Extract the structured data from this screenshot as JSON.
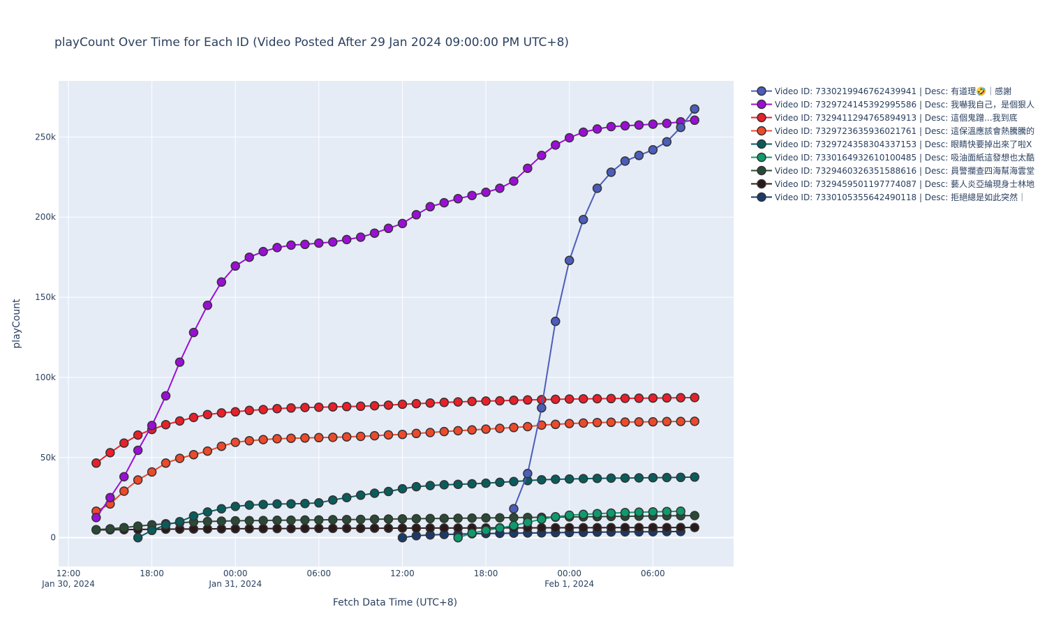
{
  "chart_data": {
    "type": "line",
    "title": "playCount Over Time for Each ID (Video Posted After 29 Jan 2024 09:00:00 PM UTC+8)",
    "xlabel": "Fetch Data Time (UTC+8)",
    "ylabel": "playCount",
    "x_ticks": [
      {
        "label": "12:00",
        "sub": "Jan 30, 2024",
        "hour": 0
      },
      {
        "label": "18:00",
        "sub": "",
        "hour": 6
      },
      {
        "label": "00:00",
        "sub": "Jan 31, 2024",
        "hour": 12
      },
      {
        "label": "06:00",
        "sub": "",
        "hour": 18
      },
      {
        "label": "12:00",
        "sub": "",
        "hour": 24
      },
      {
        "label": "18:00",
        "sub": "",
        "hour": 30
      },
      {
        "label": "00:00",
        "sub": "Feb 1, 2024",
        "hour": 36
      },
      {
        "label": "06:00",
        "sub": "",
        "hour": 42
      }
    ],
    "x_unit": "hours since 2024-01-30 12:00 UTC+8",
    "xlim": [
      -0.7,
      47.8
    ],
    "ylim": [
      -18000,
      285000
    ],
    "y_ticks": [
      {
        "value": 0,
        "label": "0"
      },
      {
        "value": 50000,
        "label": "50k"
      },
      {
        "value": 100000,
        "label": "100k"
      },
      {
        "value": 150000,
        "label": "150k"
      },
      {
        "value": 200000,
        "label": "200k"
      },
      {
        "value": 250000,
        "label": "250k"
      }
    ],
    "grid": true,
    "legend_position": "right",
    "series": [
      {
        "name": "Video ID: 7330219946762439941 | Desc: 有道理🤣｜感謝",
        "color": "#4c5dba",
        "start_hour": 32,
        "values": [
          18000,
          40000,
          81000,
          135000,
          173000,
          198500,
          218000,
          228000,
          235000,
          238500,
          242000,
          247000,
          256000,
          267500
        ]
      },
      {
        "name": "Video ID: 7329724145392995586 | Desc: 我嚇我自己，是個狠人",
        "color": "#9b0ed6",
        "start_hour": 2,
        "values": [
          12500,
          25000,
          38000,
          54500,
          70000,
          88500,
          109500,
          128000,
          145000,
          159500,
          169500,
          175000,
          178500,
          181000,
          182500,
          183000,
          183800,
          184500,
          186000,
          187500,
          190000,
          193000,
          196000,
          201500,
          206500,
          209000,
          211500,
          213500,
          215500,
          218000,
          222500,
          230500,
          238500,
          245000,
          249500,
          253000,
          255000,
          256500,
          257000,
          257500,
          258000,
          258500,
          259500,
          260500
        ]
      },
      {
        "name": "Video ID: 7329411294765894913 | Desc: 這個鬼蹭...我到底",
        "color": "#e8202a",
        "start_hour": 2,
        "values": [
          46500,
          53000,
          59000,
          64000,
          67500,
          70500,
          72800,
          75000,
          76800,
          77800,
          78500,
          79400,
          79900,
          80500,
          80900,
          81200,
          81400,
          81600,
          81800,
          82000,
          82300,
          82700,
          83200,
          83600,
          84000,
          84400,
          84700,
          85000,
          85200,
          85400,
          85700,
          85900,
          86100,
          86300,
          86500,
          86600,
          86700,
          86800,
          86900,
          87000,
          87100,
          87200,
          87300,
          87400
        ]
      },
      {
        "name": "Video ID: 7329723635936021761 | Desc: 這保溫應該會熱騰騰的",
        "color": "#ec4a2b",
        "start_hour": 2,
        "values": [
          16500,
          21000,
          29000,
          36000,
          41000,
          46500,
          49500,
          51800,
          54000,
          57000,
          59500,
          60500,
          61200,
          61700,
          62000,
          62200,
          62400,
          62600,
          62900,
          63200,
          63600,
          64100,
          64400,
          65000,
          65600,
          66200,
          66700,
          67200,
          67700,
          68200,
          68700,
          69300,
          70200,
          70700,
          71200,
          71500,
          71800,
          72000,
          72100,
          72200,
          72300,
          72400,
          72500,
          72600
        ]
      },
      {
        "name": "Video ID: 7329724358304337153 | Desc: 眼睛快要掉出來了啦X",
        "color": "#0a5c5c",
        "start_hour": 5,
        "values": [
          0,
          4500,
          8000,
          10000,
          13500,
          16000,
          18000,
          19500,
          20300,
          20700,
          21000,
          21100,
          21300,
          21700,
          23500,
          25000,
          26500,
          27700,
          28800,
          30500,
          31800,
          32500,
          33000,
          33300,
          33600,
          34000,
          34500,
          35000,
          35600,
          36100,
          36400,
          36600,
          36800,
          37000,
          37100,
          37200,
          37300,
          37400,
          37500,
          37600,
          37800
        ]
      },
      {
        "name": "Video ID: 7330164932610100485 | Desc: 吸油面紙這發想也太酷",
        "color": "#0f9a6e",
        "start_hour": 28,
        "values": [
          0,
          2800,
          4500,
          6000,
          7500,
          9500,
          11500,
          13000,
          14000,
          14500,
          15000,
          15300,
          15600,
          15900,
          16100,
          16300,
          16500
        ]
      },
      {
        "name": "Video ID: 7329460326351588616 | Desc: 員警攔查四海幫海雲堂",
        "color": "#2a4a35",
        "start_hour": 2,
        "values": [
          5000,
          5500,
          6300,
          7200,
          8000,
          8700,
          9300,
          9800,
          10100,
          10300,
          10500,
          10600,
          10700,
          10800,
          10900,
          11000,
          11100,
          11200,
          11300,
          11400,
          11500,
          11600,
          11700,
          11800,
          11900,
          12000,
          12100,
          12200,
          12300,
          12400,
          12500,
          12600,
          12700,
          12800,
          12900,
          13000,
          13100,
          13200,
          13300,
          13400,
          13500,
          13600,
          13700,
          13800
        ]
      },
      {
        "name": "Video ID: 7329459501197774087 | Desc: 藝人炎亞綸現身士林地",
        "color": "#2b1a1a",
        "start_hour": 2,
        "values": [
          4800,
          4900,
          5000,
          5100,
          5200,
          5300,
          5350,
          5400,
          5450,
          5500,
          5550,
          5600,
          5650,
          5700,
          5700,
          5750,
          5800,
          5800,
          5850,
          5850,
          5900,
          5900,
          5950,
          5950,
          6000,
          6000,
          6000,
          6050,
          6050,
          6100,
          6100,
          6100,
          6150,
          6150,
          6200,
          6200,
          6200,
          6250,
          6250,
          6300,
          6300,
          6300,
          6350,
          6350
        ]
      },
      {
        "name": "Video ID: 7330105355642490118 | Desc: 拒絕總是如此突然｜",
        "color": "#1a3a6b",
        "start_hour": 24,
        "values": [
          0,
          1200,
          1700,
          2000,
          2200,
          2400,
          2600,
          2700,
          2800,
          2900,
          3000,
          3100,
          3200,
          3300,
          3400,
          3500,
          3600,
          3650,
          3700,
          3750,
          3800
        ]
      }
    ]
  }
}
